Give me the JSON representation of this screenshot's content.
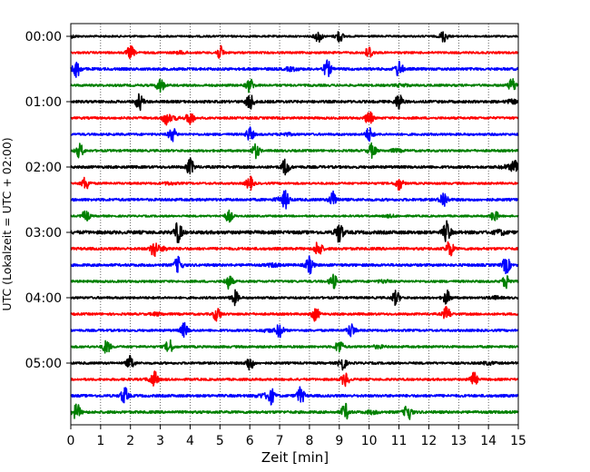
{
  "chart_data": {
    "type": "line",
    "title": "",
    "xlabel": "Zeit  [min]",
    "ylabel": "UTC (Lokalzeit = UTC + 02:00)",
    "xlim": [
      0,
      15
    ],
    "xticks": [
      0,
      1,
      2,
      3,
      4,
      5,
      6,
      7,
      8,
      9,
      10,
      11,
      12,
      13,
      14,
      15
    ],
    "x_gridlines": "dotted, every minute",
    "rows_per_hour": 4,
    "row_minutes": 15,
    "trace_colors": [
      "#000000",
      "#ff0000",
      "#0000ff",
      "#008000"
    ],
    "ytick_labels": [
      "00:00",
      "01:00",
      "02:00",
      "03:00",
      "04:00",
      "05:00"
    ],
    "series": [
      {
        "start": "00:00",
        "bursts": [
          8.3,
          9.0,
          12.5
        ],
        "amplitude": 0.25
      },
      {
        "start": "00:15",
        "bursts": [
          2.0,
          5.0,
          10.0
        ],
        "amplitude": 0.28
      },
      {
        "start": "00:30",
        "bursts": [
          0.2,
          8.6,
          11.0
        ],
        "amplitude": 0.35
      },
      {
        "start": "00:45",
        "bursts": [
          3.0,
          6.0,
          14.8
        ],
        "amplitude": 0.3
      },
      {
        "start": "01:00",
        "bursts": [
          2.3,
          6.0,
          11.0
        ],
        "amplitude": 0.35
      },
      {
        "start": "01:15",
        "bursts": [
          3.2,
          4.0,
          10.0
        ],
        "amplitude": 0.3
      },
      {
        "start": "01:30",
        "bursts": [
          3.4,
          6.0,
          10.0
        ],
        "amplitude": 0.3
      },
      {
        "start": "01:45",
        "bursts": [
          0.3,
          6.2,
          10.1
        ],
        "amplitude": 0.3
      },
      {
        "start": "02:00",
        "bursts": [
          4.0,
          7.2,
          14.9
        ],
        "amplitude": 0.35
      },
      {
        "start": "02:15",
        "bursts": [
          0.5,
          6.0,
          11.0
        ],
        "amplitude": 0.28
      },
      {
        "start": "02:30",
        "bursts": [
          7.2,
          8.8,
          12.5
        ],
        "amplitude": 0.35
      },
      {
        "start": "02:45",
        "bursts": [
          0.5,
          5.3,
          14.2
        ],
        "amplitude": 0.25
      },
      {
        "start": "03:00",
        "bursts": [
          3.6,
          9.0,
          12.6
        ],
        "amplitude": 0.45
      },
      {
        "start": "03:15",
        "bursts": [
          2.8,
          8.3,
          12.7
        ],
        "amplitude": 0.35
      },
      {
        "start": "03:30",
        "bursts": [
          3.6,
          8.0,
          14.6
        ],
        "amplitude": 0.35
      },
      {
        "start": "03:45",
        "bursts": [
          5.3,
          8.8,
          14.6
        ],
        "amplitude": 0.3
      },
      {
        "start": "04:00",
        "bursts": [
          5.5,
          10.9,
          12.6
        ],
        "amplitude": 0.3
      },
      {
        "start": "04:15",
        "bursts": [
          4.9,
          8.2,
          12.6
        ],
        "amplitude": 0.3
      },
      {
        "start": "04:30",
        "bursts": [
          3.8,
          7.0,
          9.4
        ],
        "amplitude": 0.3
      },
      {
        "start": "04:45",
        "bursts": [
          1.2,
          3.3,
          9.0
        ],
        "amplitude": 0.3
      },
      {
        "start": "05:00",
        "bursts": [
          2.0,
          6.0,
          9.1
        ],
        "amplitude": 0.3
      },
      {
        "start": "05:15",
        "bursts": [
          2.8,
          9.2,
          13.5
        ],
        "amplitude": 0.3
      },
      {
        "start": "05:30",
        "bursts": [
          1.8,
          6.7,
          7.7
        ],
        "amplitude": 0.35
      },
      {
        "start": "05:45",
        "bursts": [
          0.2,
          9.2,
          11.3
        ],
        "amplitude": 0.35
      }
    ]
  }
}
